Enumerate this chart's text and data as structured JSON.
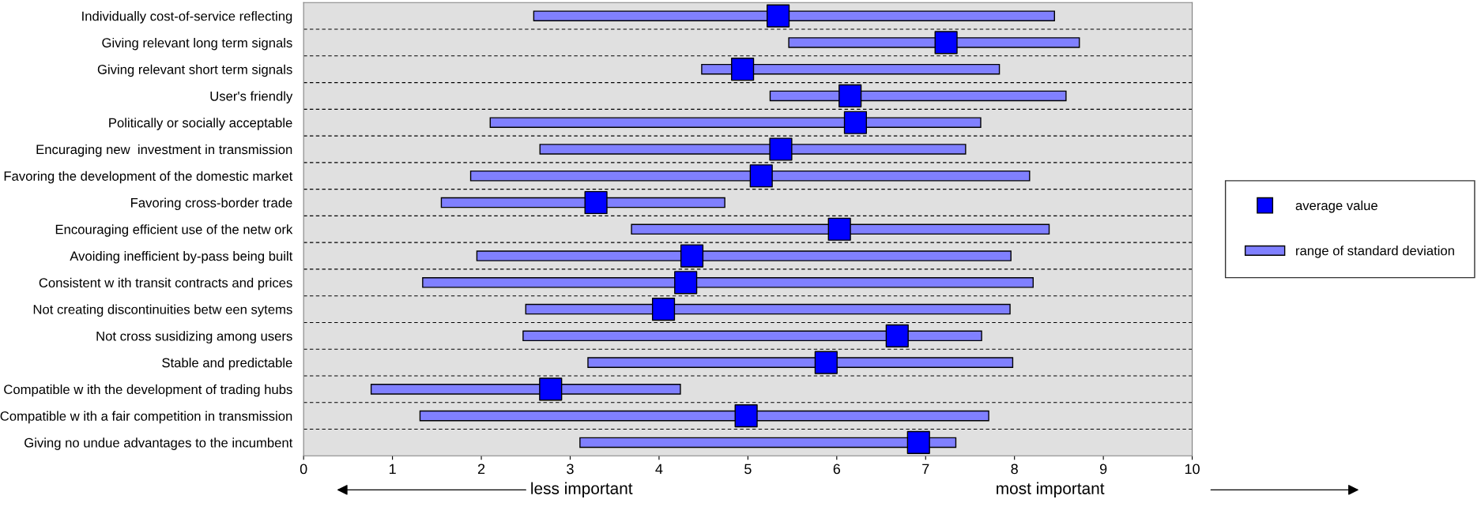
{
  "chart_data": {
    "type": "bar",
    "orientation": "horizontal",
    "categories": [
      "Individually cost-of-service reflecting",
      "Giving relevant long term signals",
      "Giving relevant short term signals",
      "User's friendly",
      "Politically or socially acceptable",
      "Encuraging new  investment in transmission",
      "Favoring the development of the domestic market",
      "Favoring cross-border trade",
      "Encouraging efficient use of the netw ork",
      "Avoiding inefficient by-pass being built",
      "Consistent w ith transit contracts and prices",
      "Not creating discontinuities betw een sytems",
      "Not cross susidizing among users",
      "Stable and predictable",
      "Compatible w ith the development of trading hubs",
      "Compatible w ith a fair competition in transmission",
      "Giving no undue advantages to the incumbent"
    ],
    "series": [
      {
        "name": "range of standard deviation",
        "color": "#8080ff",
        "base": [
          2.59,
          5.46,
          4.48,
          5.25,
          2.1,
          2.66,
          1.88,
          1.55,
          3.69,
          1.95,
          1.34,
          2.5,
          2.47,
          3.2,
          0.76,
          1.31,
          3.11
        ],
        "values": [
          5.86,
          3.27,
          3.35,
          3.33,
          5.52,
          4.79,
          6.29,
          3.19,
          4.7,
          6.01,
          6.87,
          5.45,
          5.16,
          4.78,
          3.48,
          6.4,
          4.23
        ]
      },
      {
        "name": "average value",
        "type": "scatter",
        "marker": "square",
        "color": "#0000ff",
        "values": [
          5.34,
          7.23,
          4.94,
          6.15,
          6.21,
          5.37,
          5.15,
          3.29,
          6.03,
          4.37,
          4.3,
          4.05,
          6.68,
          5.88,
          2.78,
          4.98,
          6.92
        ]
      }
    ],
    "xlim": [
      0,
      10
    ],
    "xticks": [
      0,
      1,
      2,
      3,
      4,
      5,
      6,
      7,
      8,
      9,
      10
    ],
    "grid": "y",
    "legend": "right",
    "annotations": [
      "less important",
      "most important"
    ]
  }
}
